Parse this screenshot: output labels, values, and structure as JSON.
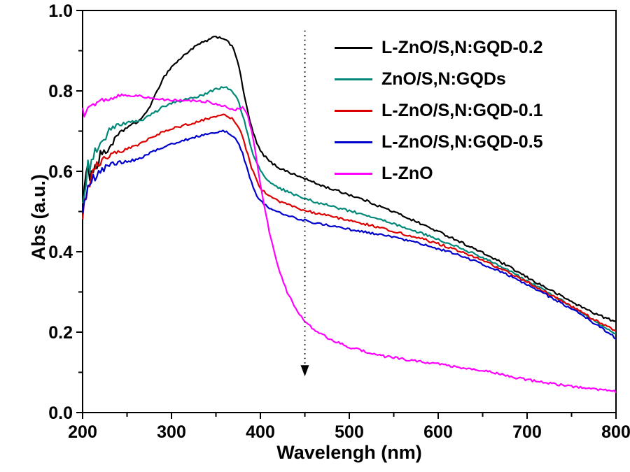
{
  "figure": {
    "background": "#ffffff"
  },
  "chart_data": {
    "type": "line",
    "title": "",
    "xlabel": "Wavelengh (nm)",
    "ylabel": "Abs (a.u.)",
    "xlim": [
      200,
      800
    ],
    "ylim": [
      0,
      1
    ],
    "x_ticks": [
      200,
      300,
      400,
      500,
      600,
      700,
      800
    ],
    "y_ticks": [
      0.0,
      0.2,
      0.4,
      0.6,
      0.8,
      1.0
    ],
    "y_tick_labels": [
      "0.0",
      "0.2",
      "0.4",
      "0.6",
      "0.8",
      "1.0"
    ],
    "grid": false,
    "legend_position": "top-right-inside",
    "annotation": {
      "type": "dotted_arrow",
      "direction": "down",
      "x_nm": 450,
      "y_from": 0.95,
      "y_to": 0.09
    },
    "x_nm": [
      200,
      205,
      210,
      215,
      220,
      225,
      230,
      240,
      250,
      260,
      270,
      280,
      290,
      300,
      310,
      320,
      330,
      340,
      350,
      360,
      370,
      375,
      380,
      385,
      390,
      395,
      400,
      410,
      420,
      430,
      440,
      450,
      460,
      480,
      500,
      520,
      540,
      560,
      580,
      600,
      620,
      640,
      660,
      680,
      700,
      720,
      740,
      760,
      780,
      800
    ],
    "series": [
      {
        "name": "L-ZnO/S,N:GQD-0.2",
        "color": "#000000",
        "abs": [
          0.52,
          0.58,
          0.62,
          0.6,
          0.65,
          0.64,
          0.66,
          0.69,
          0.71,
          0.72,
          0.74,
          0.78,
          0.83,
          0.86,
          0.88,
          0.9,
          0.915,
          0.925,
          0.935,
          0.93,
          0.905,
          0.87,
          0.81,
          0.755,
          0.71,
          0.675,
          0.65,
          0.625,
          0.61,
          0.6,
          0.59,
          0.582,
          0.572,
          0.556,
          0.542,
          0.526,
          0.508,
          0.49,
          0.47,
          0.45,
          0.43,
          0.408,
          0.386,
          0.362,
          0.336,
          0.312,
          0.288,
          0.264,
          0.243,
          0.225
        ]
      },
      {
        "name": "ZnO/S,N:GQDs",
        "color": "#008878",
        "abs": [
          0.55,
          0.6,
          0.63,
          0.65,
          0.67,
          0.685,
          0.7,
          0.715,
          0.72,
          0.725,
          0.73,
          0.745,
          0.76,
          0.77,
          0.775,
          0.78,
          0.785,
          0.795,
          0.805,
          0.81,
          0.795,
          0.775,
          0.74,
          0.7,
          0.655,
          0.625,
          0.6,
          0.575,
          0.56,
          0.55,
          0.54,
          0.532,
          0.525,
          0.513,
          0.502,
          0.49,
          0.476,
          0.462,
          0.447,
          0.43,
          0.413,
          0.395,
          0.374,
          0.352,
          0.328,
          0.303,
          0.277,
          0.25,
          0.222,
          0.196
        ]
      },
      {
        "name": "L-ZnO/S,N:GQD-0.1",
        "color": "#dd0000",
        "abs": [
          0.48,
          0.55,
          0.595,
          0.61,
          0.625,
          0.63,
          0.64,
          0.648,
          0.655,
          0.663,
          0.676,
          0.688,
          0.697,
          0.705,
          0.712,
          0.718,
          0.724,
          0.731,
          0.738,
          0.74,
          0.728,
          0.712,
          0.685,
          0.648,
          0.61,
          0.58,
          0.558,
          0.538,
          0.527,
          0.518,
          0.51,
          0.503,
          0.497,
          0.487,
          0.478,
          0.468,
          0.457,
          0.445,
          0.433,
          0.42,
          0.405,
          0.388,
          0.368,
          0.347,
          0.325,
          0.3,
          0.276,
          0.251,
          0.226,
          0.202
        ]
      },
      {
        "name": "L-ZnO/S,N:GQD-0.5",
        "color": "#0000cc",
        "abs": [
          0.49,
          0.54,
          0.575,
          0.59,
          0.6,
          0.608,
          0.615,
          0.622,
          0.625,
          0.628,
          0.638,
          0.65,
          0.66,
          0.668,
          0.675,
          0.681,
          0.687,
          0.693,
          0.698,
          0.7,
          0.688,
          0.672,
          0.645,
          0.608,
          0.572,
          0.545,
          0.525,
          0.508,
          0.498,
          0.49,
          0.484,
          0.478,
          0.473,
          0.464,
          0.456,
          0.448,
          0.44,
          0.43,
          0.42,
          0.408,
          0.394,
          0.378,
          0.36,
          0.34,
          0.318,
          0.295,
          0.27,
          0.245,
          0.215,
          0.185
        ]
      },
      {
        "name": "L-ZnO",
        "color": "#ff00ff",
        "abs": [
          0.745,
          0.755,
          0.765,
          0.77,
          0.775,
          0.778,
          0.78,
          0.788,
          0.79,
          0.788,
          0.785,
          0.78,
          0.778,
          0.777,
          0.776,
          0.776,
          0.775,
          0.773,
          0.768,
          0.762,
          0.752,
          0.755,
          0.758,
          0.745,
          0.7,
          0.64,
          0.565,
          0.45,
          0.36,
          0.3,
          0.257,
          0.228,
          0.207,
          0.18,
          0.163,
          0.15,
          0.14,
          0.133,
          0.127,
          0.121,
          0.114,
          0.108,
          0.1,
          0.09,
          0.082,
          0.074,
          0.068,
          0.062,
          0.057,
          0.052
        ]
      }
    ]
  }
}
